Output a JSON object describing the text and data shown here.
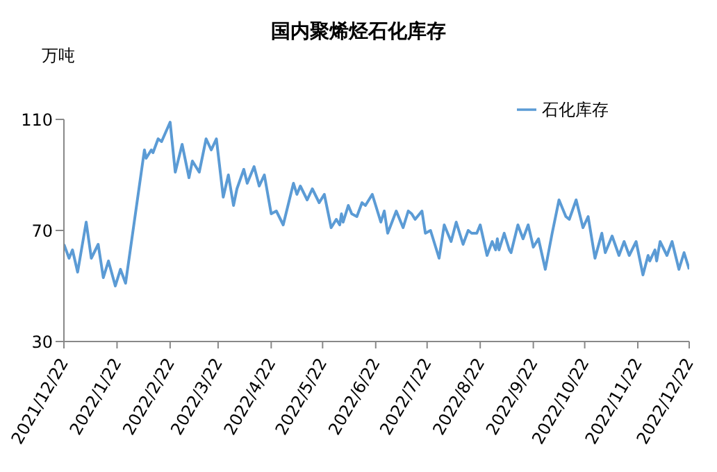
{
  "chart_data": {
    "type": "line",
    "title": "国内聚烯烃石化库存",
    "ylabel": "万吨",
    "x": [
      "2021-12-22",
      "2021-12-25",
      "2021-12-27",
      "2021-12-30",
      "2022-01-04",
      "2022-01-07",
      "2022-01-11",
      "2022-01-14",
      "2022-01-17",
      "2022-01-21",
      "2022-01-24",
      "2022-01-27",
      "2022-02-07",
      "2022-02-08",
      "2022-02-11",
      "2022-02-12",
      "2022-02-15",
      "2022-02-17",
      "2022-02-22",
      "2022-02-25",
      "2022-03-01",
      "2022-03-05",
      "2022-03-07",
      "2022-03-11",
      "2022-03-15",
      "2022-03-18",
      "2022-03-21",
      "2022-03-25",
      "2022-03-28",
      "2022-03-31",
      "2022-04-02",
      "2022-04-06",
      "2022-04-08",
      "2022-04-12",
      "2022-04-15",
      "2022-04-18",
      "2022-04-22",
      "2022-04-25",
      "2022-04-29",
      "2022-05-05",
      "2022-05-07",
      "2022-05-09",
      "2022-05-13",
      "2022-05-16",
      "2022-05-20",
      "2022-05-23",
      "2022-05-27",
      "2022-05-30",
      "2022-06-01",
      "2022-06-02",
      "2022-06-03",
      "2022-06-06",
      "2022-06-08",
      "2022-06-11",
      "2022-06-14",
      "2022-06-16",
      "2022-06-20",
      "2022-06-25",
      "2022-06-27",
      "2022-06-29",
      "2022-07-04",
      "2022-07-08",
      "2022-07-11",
      "2022-07-13",
      "2022-07-15",
      "2022-07-19",
      "2022-07-21",
      "2022-07-24",
      "2022-07-29",
      "2022-08-01",
      "2022-08-05",
      "2022-08-08",
      "2022-08-12",
      "2022-08-15",
      "2022-08-17",
      "2022-08-20",
      "2022-08-22",
      "2022-08-26",
      "2022-08-29",
      "2022-08-31",
      "2022-09-01",
      "2022-09-02",
      "2022-09-05",
      "2022-09-08",
      "2022-09-09",
      "2022-09-13",
      "2022-09-16",
      "2022-09-19",
      "2022-09-22",
      "2022-09-25",
      "2022-09-29",
      "2022-10-03",
      "2022-10-07",
      "2022-10-11",
      "2022-10-13",
      "2022-10-17",
      "2022-10-21",
      "2022-10-24",
      "2022-10-28",
      "2022-11-01",
      "2022-11-03",
      "2022-11-07",
      "2022-11-11",
      "2022-11-14",
      "2022-11-17",
      "2022-11-21",
      "2022-11-25",
      "2022-11-28",
      "2022-11-29",
      "2022-12-02",
      "2022-12-03",
      "2022-12-05",
      "2022-12-09",
      "2022-12-12",
      "2022-12-16",
      "2022-12-19",
      "2022-12-22"
    ],
    "series": [
      {
        "name": "石化库存",
        "color": "#5b9bd5",
        "values": [
          65,
          60,
          63,
          55,
          73,
          60,
          65,
          53,
          59,
          50,
          56,
          51,
          99,
          96,
          99,
          98,
          103,
          102,
          109,
          91,
          101,
          89,
          95,
          91,
          103,
          99,
          103,
          82,
          90,
          79,
          85,
          92,
          87,
          93,
          86,
          90,
          76,
          77,
          72,
          87,
          83,
          86,
          81,
          85,
          80,
          83,
          71,
          74,
          72,
          76,
          73,
          79,
          76,
          75,
          80,
          79,
          83,
          73,
          77,
          69,
          77,
          71,
          77,
          76,
          74,
          77,
          69,
          70,
          60,
          72,
          66,
          73,
          65,
          70,
          69,
          69,
          72,
          61,
          66,
          63,
          67,
          63,
          69,
          63,
          62,
          72,
          67,
          72,
          64,
          67,
          56,
          69,
          81,
          75,
          74,
          81,
          71,
          75,
          60,
          69,
          62,
          68,
          61,
          66,
          61,
          66,
          54,
          61,
          59,
          63,
          59,
          66,
          61,
          66,
          56,
          62,
          56
        ]
      }
    ],
    "xlim": [
      "2021-12-22",
      "2022-12-22"
    ],
    "xticks": [
      {
        "value": "2021-12-22",
        "label": "2021/12/22"
      },
      {
        "value": "2022-01-22",
        "label": "2022/1/22"
      },
      {
        "value": "2022-02-22",
        "label": "2022/2/22"
      },
      {
        "value": "2022-03-22",
        "label": "2022/3/22"
      },
      {
        "value": "2022-04-22",
        "label": "2022/4/22"
      },
      {
        "value": "2022-05-22",
        "label": "2022/5/22"
      },
      {
        "value": "2022-06-22",
        "label": "2022/6/22"
      },
      {
        "value": "2022-07-22",
        "label": "2022/7/22"
      },
      {
        "value": "2022-08-22",
        "label": "2022/8/22"
      },
      {
        "value": "2022-09-22",
        "label": "2022/9/22"
      },
      {
        "value": "2022-10-22",
        "label": "2022/10/22"
      },
      {
        "value": "2022-11-22",
        "label": "2022/11/22"
      },
      {
        "value": "2022-12-22",
        "label": "2022/12/22"
      }
    ],
    "ylim": [
      30,
      110
    ],
    "yticks": [
      30,
      70,
      110
    ],
    "grid": false,
    "legend": "top right",
    "marker": "none",
    "line_style": "solid"
  }
}
